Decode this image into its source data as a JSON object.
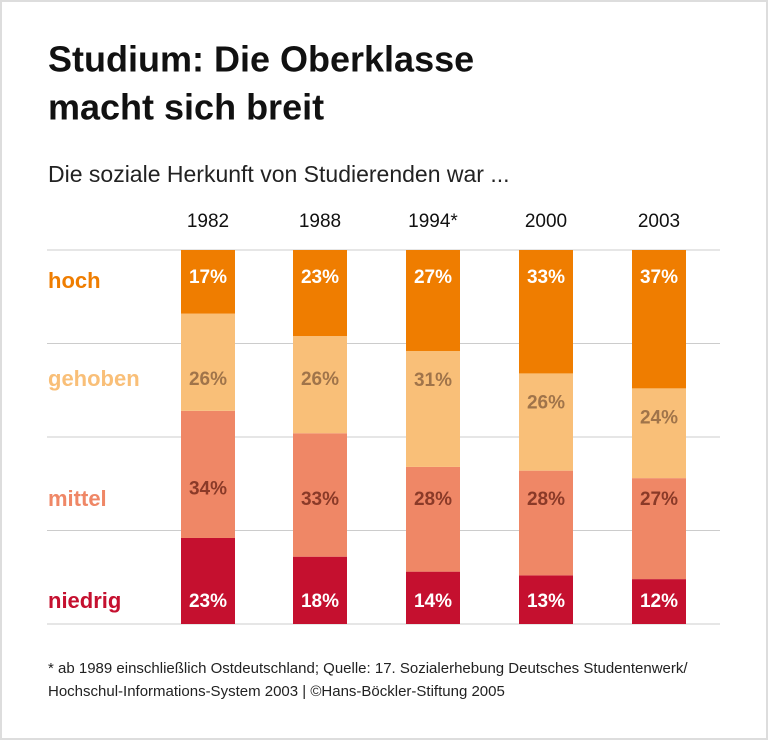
{
  "chart_data": {
    "type": "bar",
    "stacked": true,
    "title": [
      "Studium: Die Oberklasse",
      "macht sich breit"
    ],
    "subtitle": "Die soziale Herkunft von Studierenden war ...",
    "categories": [
      "1982",
      "1988",
      "1994*",
      "2000",
      "2003"
    ],
    "series": [
      {
        "name": "niedrig",
        "color": "#c5102f",
        "values": [
          23,
          18,
          14,
          13,
          12
        ],
        "value_labels": [
          "23%",
          "18%",
          "14%",
          "13%",
          "12%"
        ]
      },
      {
        "name": "mittel",
        "color": "#ef8766",
        "values": [
          34,
          33,
          28,
          28,
          27
        ],
        "value_labels": [
          "34%",
          "33%",
          "28%",
          "28%",
          "27%"
        ]
      },
      {
        "name": "gehoben",
        "color": "#f9bf78",
        "values": [
          26,
          26,
          31,
          26,
          24
        ],
        "value_labels": [
          "26%",
          "26%",
          "31%",
          "26%",
          "24%"
        ]
      },
      {
        "name": "hoch",
        "color": "#ef7d00",
        "values": [
          17,
          23,
          27,
          33,
          37
        ],
        "value_labels": [
          "17%",
          "23%",
          "27%",
          "33%",
          "37%"
        ]
      }
    ],
    "ylim": [
      0,
      100
    ],
    "yticks": [
      0,
      25,
      50,
      75,
      100
    ],
    "grid": true,
    "footnote": [
      "* ab 1989 einschließlich Ostdeutschland; Quelle: 17. Sozialerhebung Deutsches Studentenwerk/",
      "Hochschul-Informations-System 2003 | ©Hans-Böckler-Stiftung 2005"
    ]
  }
}
